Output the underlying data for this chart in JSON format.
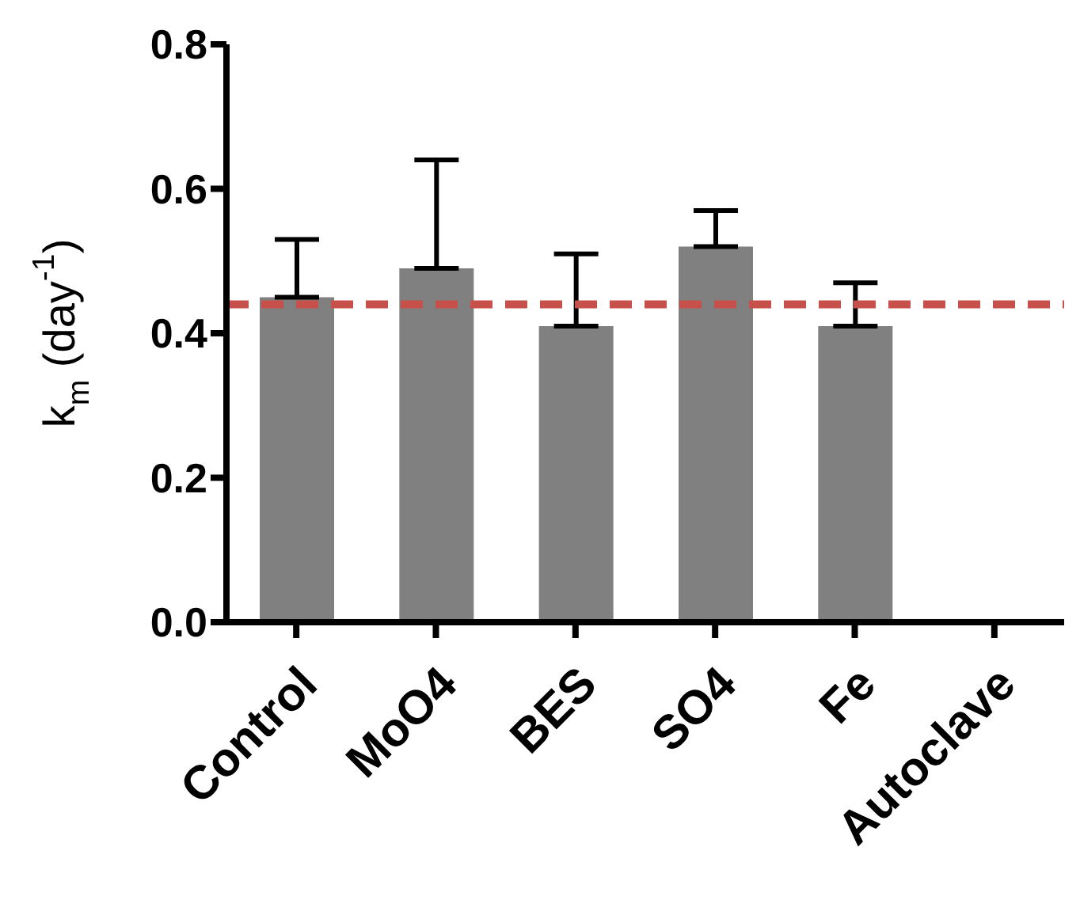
{
  "chart_data": {
    "type": "bar",
    "ylabel": "k$_{m}$ (day$^{-1}$)",
    "categories": [
      "Control",
      "MoO4",
      "BES",
      "SO4",
      "Fe",
      "Autoclave"
    ],
    "values": [
      0.45,
      0.49,
      0.41,
      0.52,
      0.41,
      null
    ],
    "errors": [
      [
        0.45,
        0.53
      ],
      [
        0.49,
        0.64
      ],
      [
        0.41,
        0.51
      ],
      [
        0.52,
        0.57
      ],
      [
        0.41,
        0.47
      ],
      null
    ],
    "color": "#808080",
    "ylim": [
      0,
      0.8
    ],
    "yticks": [
      {
        "value": 0,
        "label": "0.0"
      },
      0.2,
      0.4,
      0.6,
      0.8
    ],
    "ref_lines": [
      {
        "axis": "y",
        "value": 0.44,
        "color": "#c8504b",
        "line_style": "dashed"
      }
    ],
    "grid": false,
    "legend": false
  }
}
